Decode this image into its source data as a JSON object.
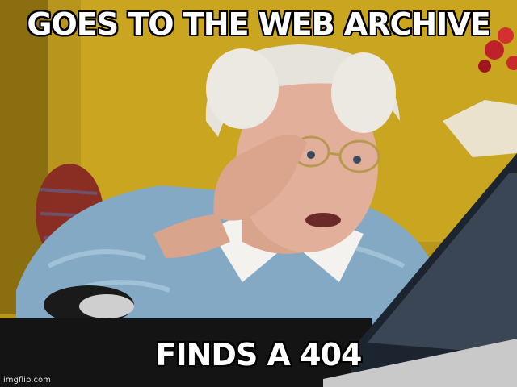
{
  "meme": {
    "top_text": "GOES TO THE WEB ARCHIVE",
    "bottom_text": "FINDS A 404",
    "watermark": "imgflip.com"
  }
}
